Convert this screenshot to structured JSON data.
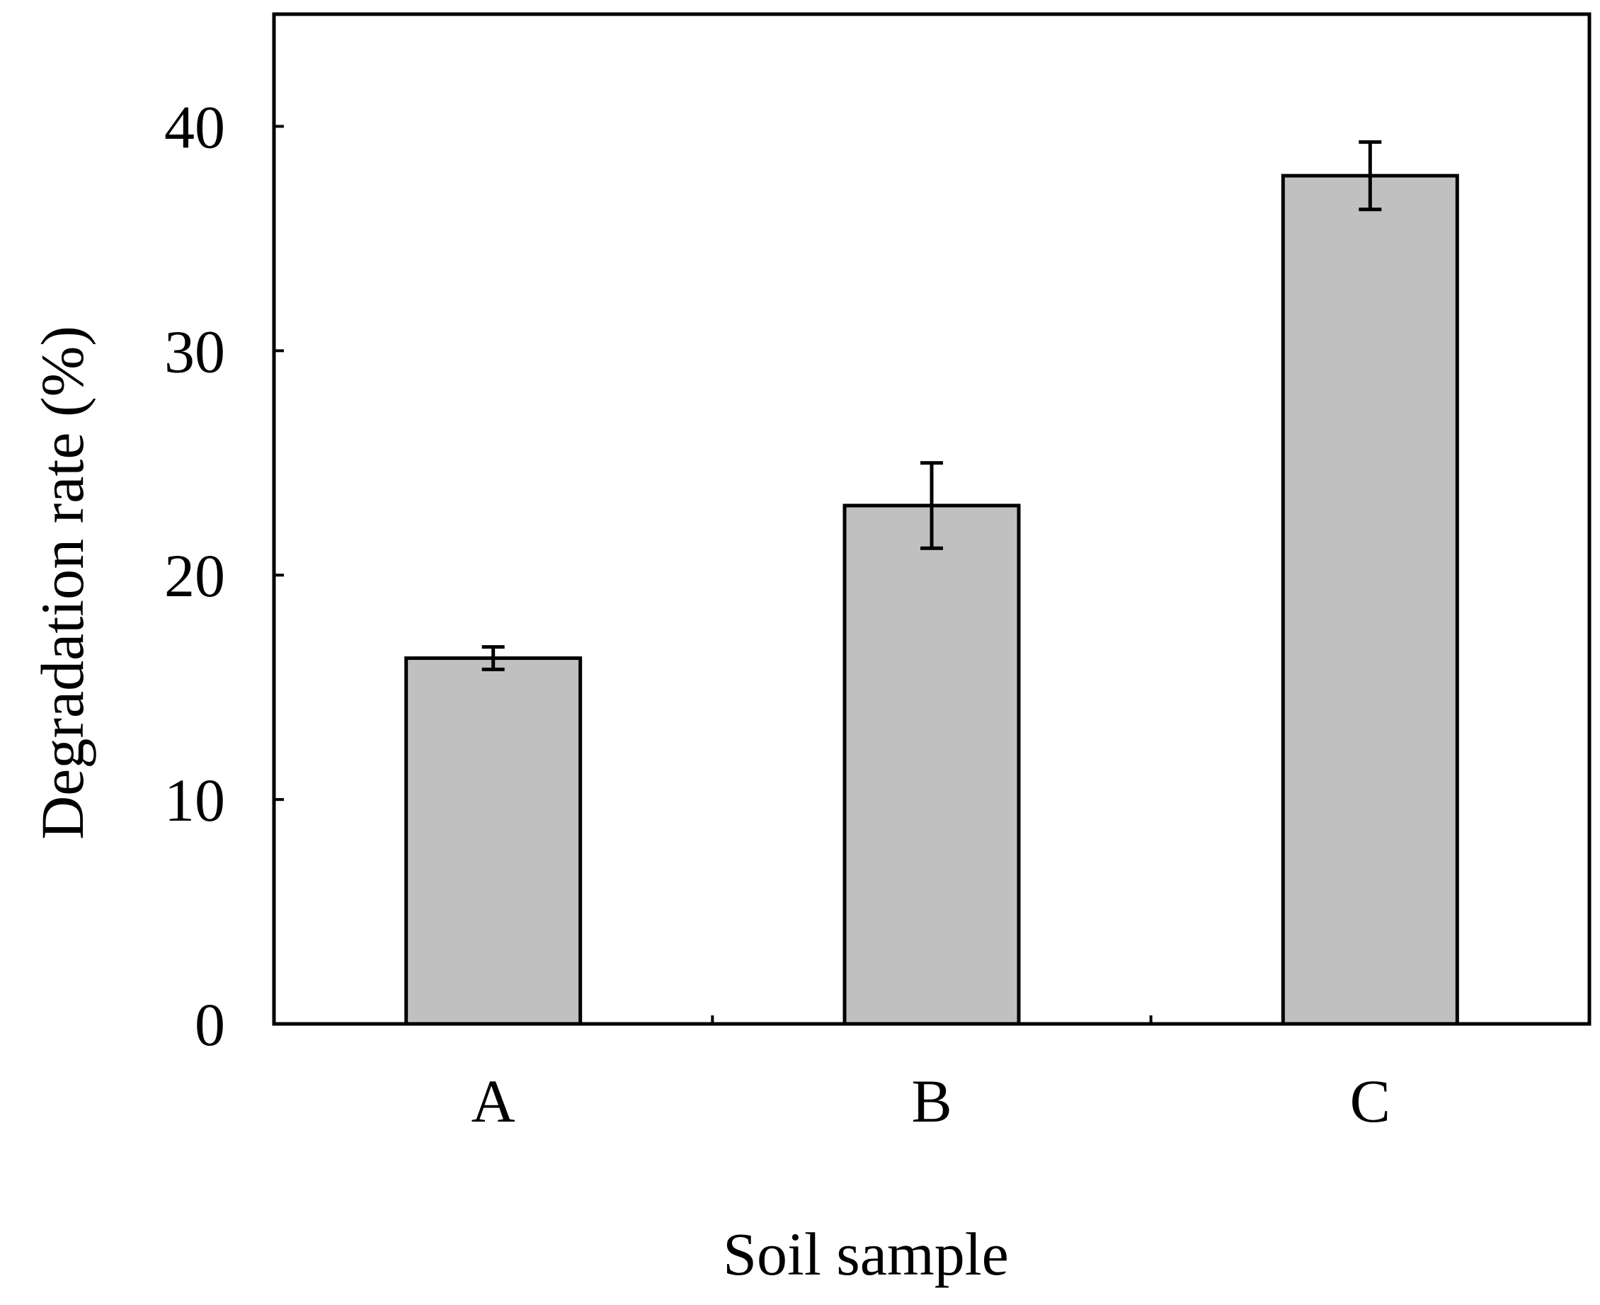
{
  "chart_data": {
    "type": "bar",
    "categories": [
      "A",
      "B",
      "C"
    ],
    "values": [
      16.3,
      23.1,
      37.8
    ],
    "errors": [
      0.5,
      1.9,
      1.5
    ],
    "xlabel": "Soil sample",
    "ylabel": "Degradation rate (%)",
    "ylim": [
      0,
      45
    ],
    "yticks": [
      0,
      10,
      20,
      30,
      40
    ],
    "grid": false,
    "bar_color": "#c0c0c0",
    "edge_color": "#000000"
  }
}
